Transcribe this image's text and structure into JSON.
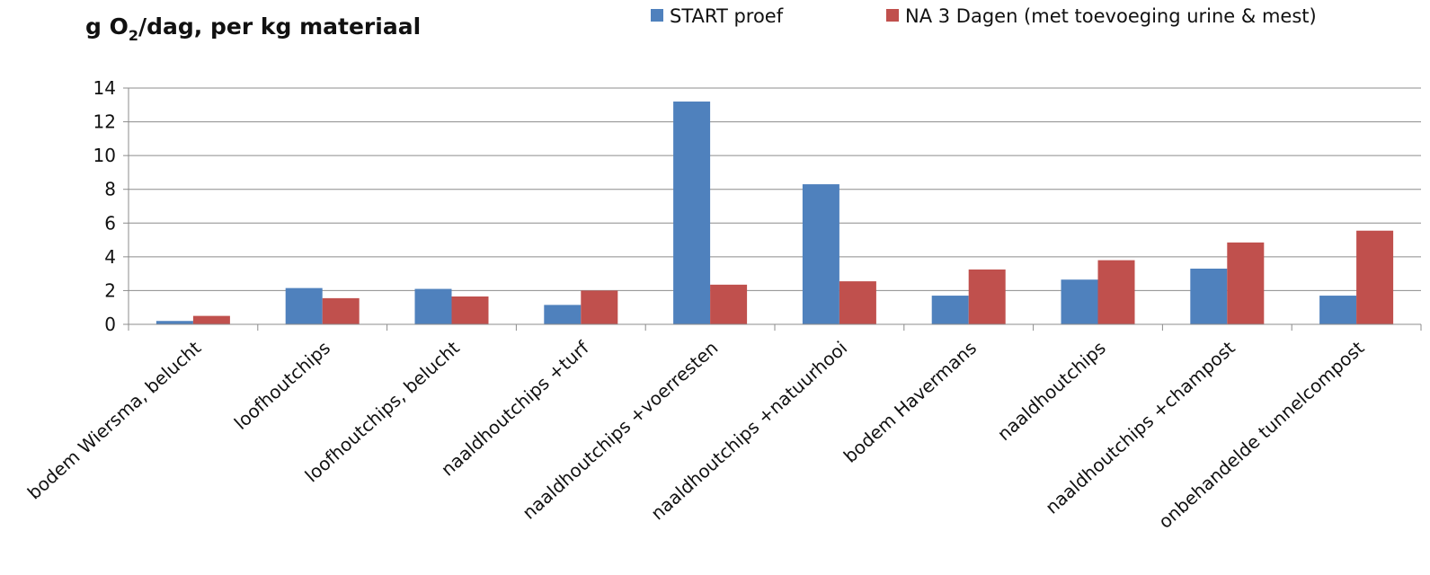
{
  "chart_data": {
    "type": "bar",
    "title": {
      "prefix": "g O",
      "subscript": "2",
      "suffix": "/dag, per kg materiaal"
    },
    "xlabel": "",
    "ylabel": "",
    "ylim": [
      0,
      14
    ],
    "yticks": [
      "0",
      "2",
      "4",
      "6",
      "8",
      "10",
      "12",
      "14"
    ],
    "grid": true,
    "legend_position": "top-right",
    "categories": [
      "bodem Wiersma, belucht",
      "loofhoutchips",
      "loofhoutchips, belucht",
      "naaldhoutchips +turf",
      "naaldhoutchips +voerresten",
      "naaldhoutchips +natuurhooi",
      "bodem Havermans",
      "naaldhoutchips",
      "naaldhoutchips +champost",
      "onbehandelde tunnelcompost"
    ],
    "series": [
      {
        "name": "START proef",
        "color": "#4f81bd",
        "values": [
          0.2,
          2.15,
          2.1,
          1.15,
          13.2,
          8.3,
          1.7,
          2.65,
          3.3,
          1.7
        ]
      },
      {
        "name": "NA 3 Dagen (met toevoeging urine & mest)",
        "color": "#c0504d",
        "values": [
          0.5,
          1.55,
          1.65,
          2.0,
          2.35,
          2.55,
          3.25,
          3.8,
          4.85,
          5.55
        ]
      }
    ]
  }
}
